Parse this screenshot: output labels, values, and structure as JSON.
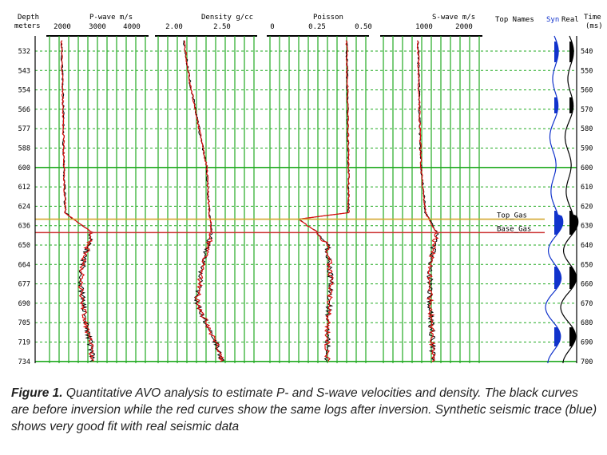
{
  "figure": {
    "depth_header": [
      "Depth",
      "meters"
    ],
    "time_header": [
      "Time",
      "(ms)"
    ],
    "depth_ticks": [
      532,
      543,
      554,
      566,
      577,
      588,
      600,
      612,
      624,
      636,
      650,
      664,
      677,
      690,
      705,
      719,
      734
    ],
    "time_ticks": [
      540,
      550,
      560,
      570,
      580,
      590,
      600,
      610,
      620,
      630,
      640,
      650,
      660,
      670,
      680,
      690,
      700
    ],
    "colors": {
      "grid_green": "#22aa22",
      "before_inversion": "#000000",
      "after_inversion": "#dd1111",
      "synthetic": "#1133cc",
      "real": "#000000",
      "top_gas_line": "#d4a830",
      "base_gas_line": "#cc3333"
    },
    "top_names_title": "Top Names",
    "syn_label": "Syn",
    "real_label": "Real",
    "horizons": [
      {
        "name": "Top_Gas",
        "depth": 632
      },
      {
        "name": "Base_Gas",
        "depth": 641
      }
    ]
  },
  "chart_data": [
    {
      "type": "line",
      "title": "P-wave m/s",
      "ticks": [
        "2000",
        "3000",
        "4000"
      ],
      "xlim": [
        2000,
        4000
      ],
      "ylabel": "Depth meters",
      "series": [
        {
          "profile_depths": [
            526,
            560,
            600,
            628,
            641,
            650,
            664,
            677,
            690,
            705,
            719,
            734
          ],
          "values": [
            2250,
            2280,
            2300,
            2330,
            2900,
            2800,
            2700,
            2650,
            2700,
            2750,
            2850,
            2900
          ]
        }
      ]
    },
    {
      "type": "line",
      "title": "Density g/cc",
      "ticks": [
        "2.00",
        "2.50"
      ],
      "xlim": [
        2.0,
        2.75
      ],
      "series": [
        {
          "profile_depths": [
            526,
            550,
            577,
            600,
            628,
            641,
            664,
            690,
            719,
            734
          ],
          "values": [
            2.2,
            2.25,
            2.32,
            2.38,
            2.4,
            2.42,
            2.35,
            2.3,
            2.45,
            2.5
          ]
        }
      ]
    },
    {
      "type": "line",
      "title": "Poisson",
      "ticks": [
        "0",
        "0.25",
        "0.50"
      ],
      "xlim": [
        0,
        0.5
      ],
      "series": [
        {
          "profile_depths": [
            526,
            600,
            628,
            632,
            641,
            650,
            677,
            705,
            734
          ],
          "values": [
            0.4,
            0.41,
            0.41,
            0.15,
            0.25,
            0.3,
            0.32,
            0.3,
            0.3
          ]
        }
      ]
    },
    {
      "type": "line",
      "title": "S-wave m/s",
      "ticks": [
        "1000",
        "2000"
      ],
      "xlim": [
        0,
        2500
      ],
      "series": [
        {
          "profile_depths": [
            526,
            577,
            600,
            628,
            641,
            650,
            677,
            705,
            734
          ],
          "values": [
            900,
            950,
            980,
            1100,
            1400,
            1300,
            1200,
            1250,
            1300
          ]
        }
      ]
    }
  ],
  "caption": {
    "lead": "Figure 1.",
    "text": " Quantitative AVO analysis to estimate P- and S-wave velocities and density. The black curves are before inversion while the red curves show the same logs after inversion. Synthetic seismic trace (blue) shows very good fit with real seismic data"
  }
}
